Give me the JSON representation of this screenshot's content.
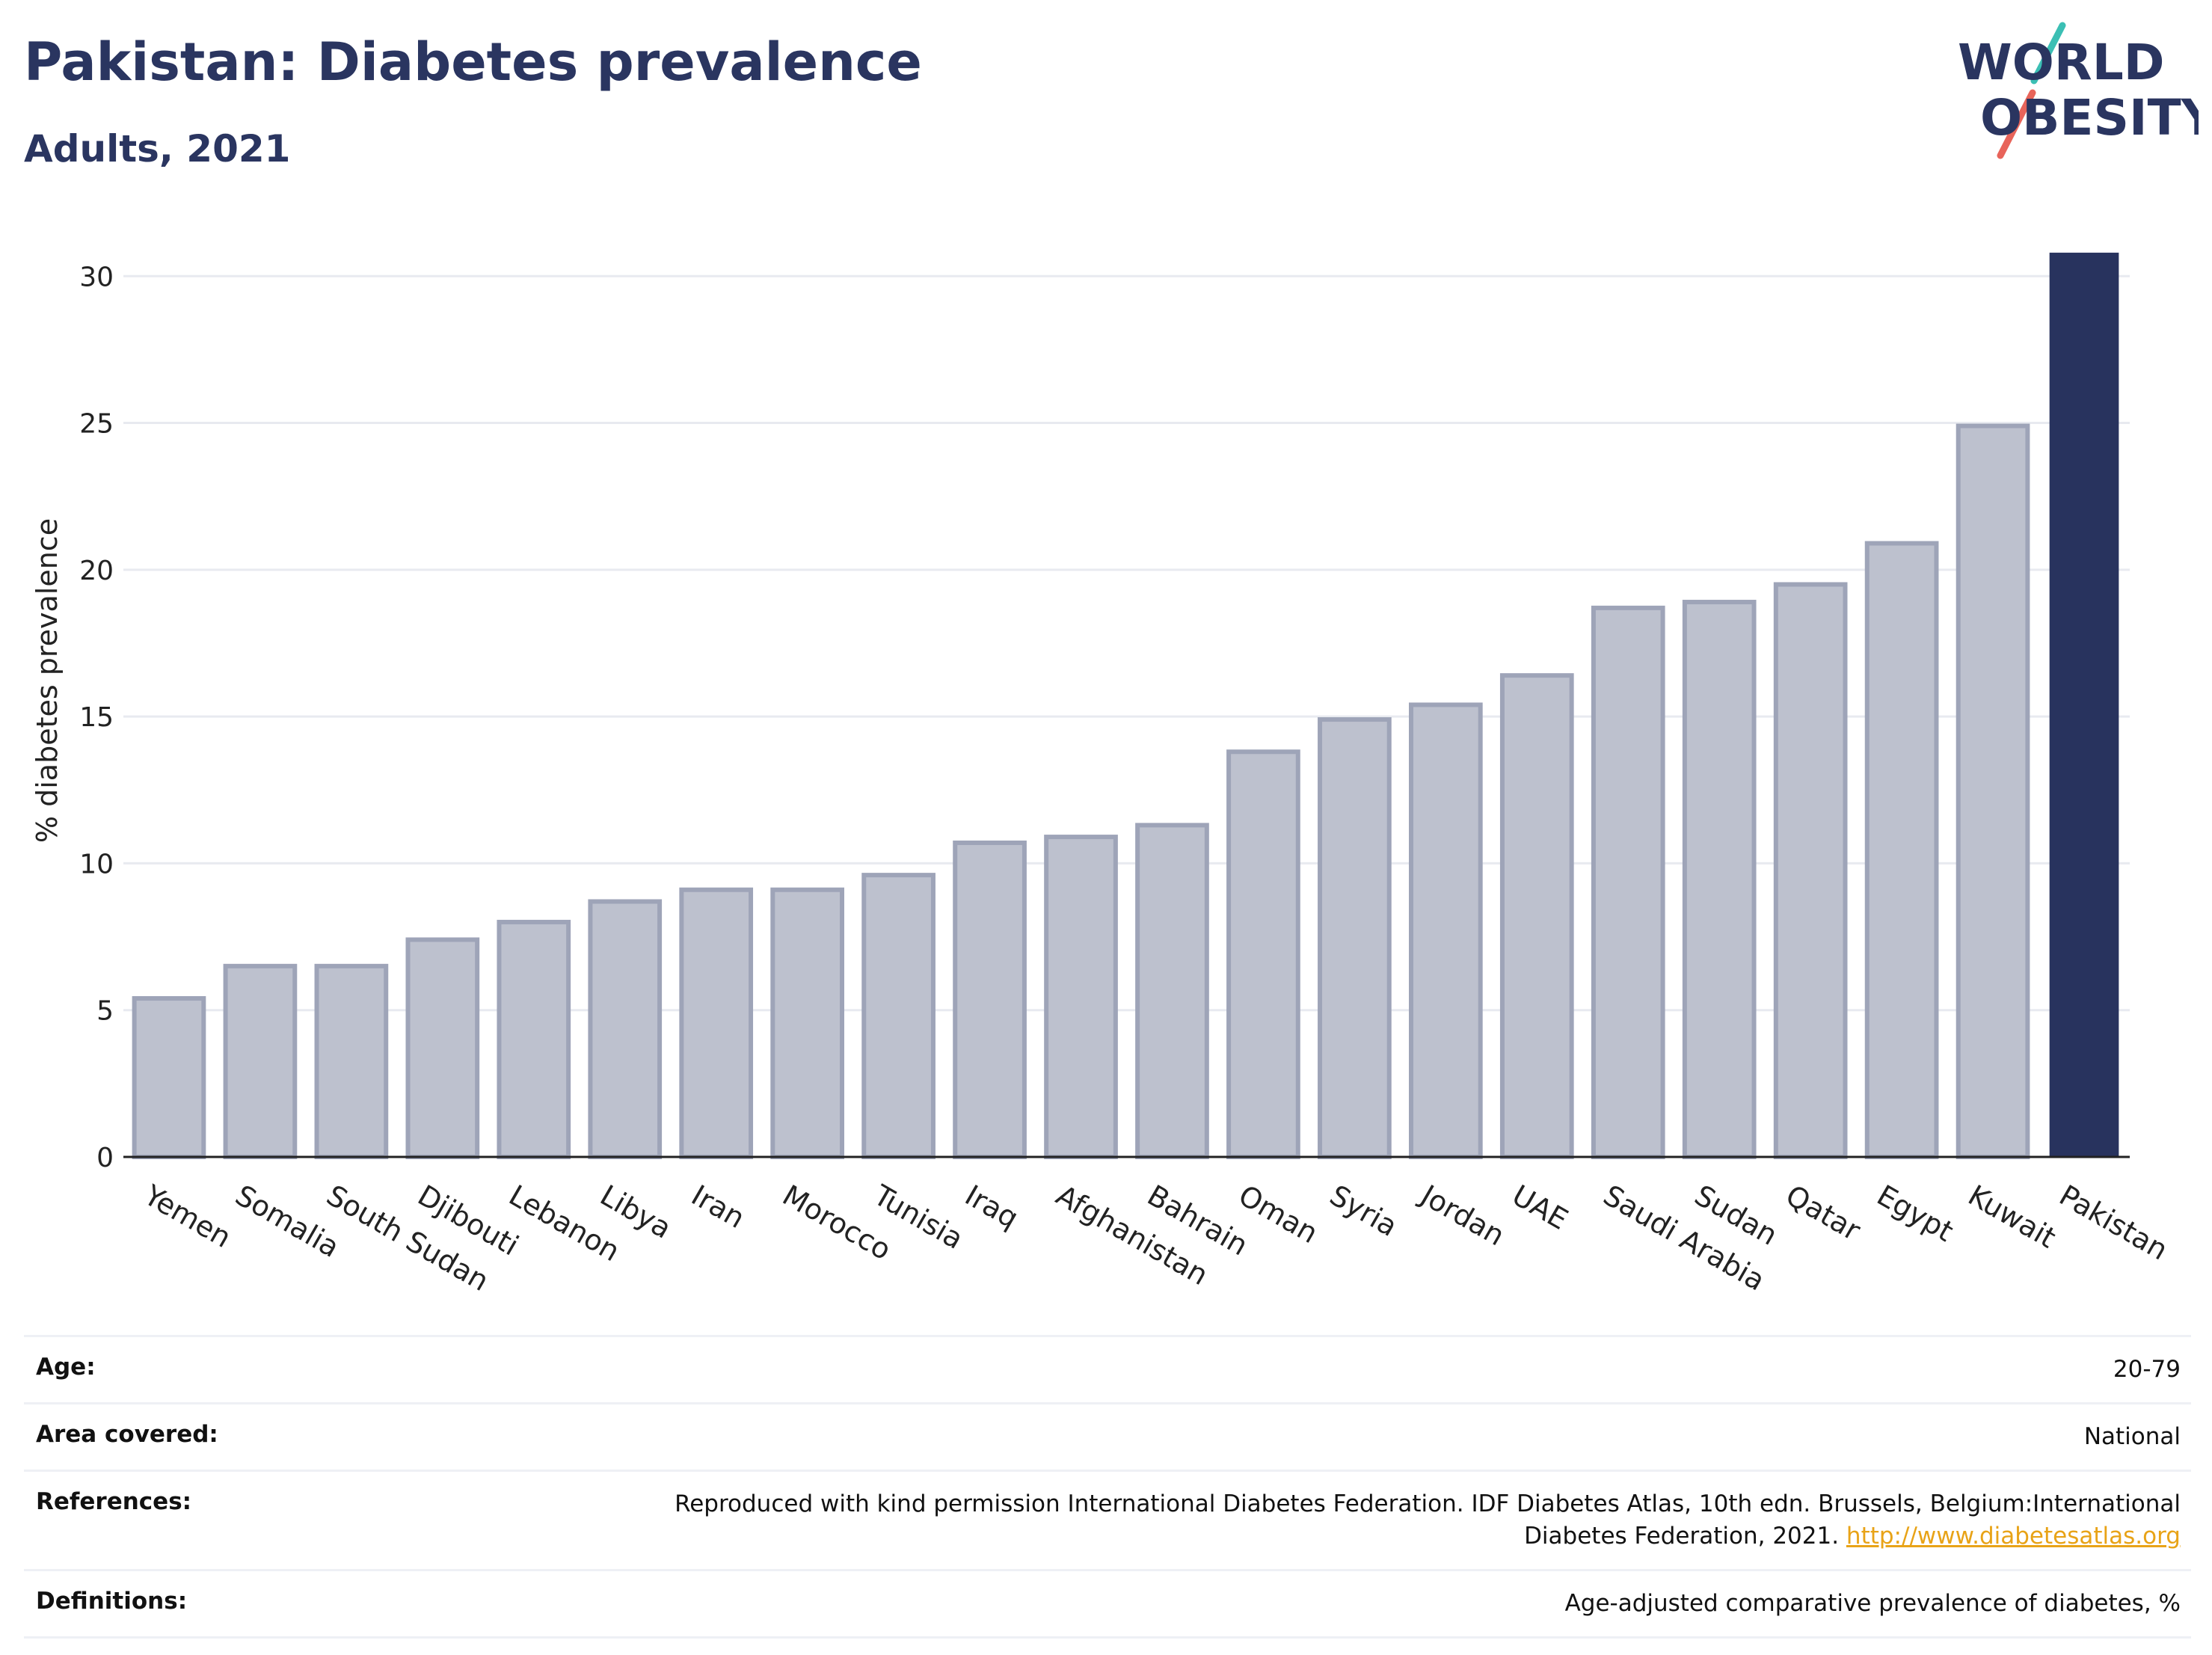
{
  "header": {
    "title": "Pakistan: Diabetes prevalence",
    "subtitle": "Adults, 2021"
  },
  "logo": {
    "line1": "WORLD",
    "line2": "OBESITY",
    "slash_colors": [
      "#3bbfb4",
      "#e8645a"
    ],
    "text_color": "#2a3560"
  },
  "colors": {
    "bar_other_fill": "#bdc1ce",
    "bar_other_stroke": "#9ea4b8",
    "bar_highlight": "#28335e",
    "grid": "#e8eaf0",
    "axis": "#222222"
  },
  "chart_data": {
    "type": "bar",
    "ylabel": "% diabetes prevalence",
    "xlabel": "",
    "ylim": [
      0,
      31
    ],
    "yticks": [
      0,
      5,
      10,
      15,
      20,
      25,
      30
    ],
    "grid": true,
    "categories": [
      "Yemen",
      "Somalia",
      "South Sudan",
      "Djibouti",
      "Lebanon",
      "Libya",
      "Iran",
      "Morocco",
      "Tunisia",
      "Iraq",
      "Afghanistan",
      "Bahrain",
      "Oman",
      "Syria",
      "Jordan",
      "UAE",
      "Saudi Arabia",
      "Sudan",
      "Qatar",
      "Egypt",
      "Kuwait",
      "Pakistan"
    ],
    "values": [
      5.4,
      6.5,
      6.5,
      7.4,
      8.0,
      8.7,
      9.1,
      9.1,
      9.6,
      10.7,
      10.9,
      11.3,
      13.8,
      14.9,
      15.4,
      16.4,
      18.7,
      18.9,
      19.5,
      20.9,
      24.9,
      30.8
    ],
    "highlight": "Pakistan"
  },
  "info": {
    "rows": [
      {
        "key": "Age:",
        "value": "20-79"
      },
      {
        "key": "Area covered:",
        "value": "National"
      },
      {
        "key": "References:",
        "value": "Reproduced with kind permission International Diabetes Federation.  IDF Diabetes Atlas, 10th edn. Brussels, Belgium:International",
        "value2": "Diabetes Federation, 2021.",
        "link": "http://www.diabetesatlas.org"
      },
      {
        "key": "Definitions:",
        "value": "Age-adjusted comparative prevalence of diabetes, %"
      }
    ]
  }
}
